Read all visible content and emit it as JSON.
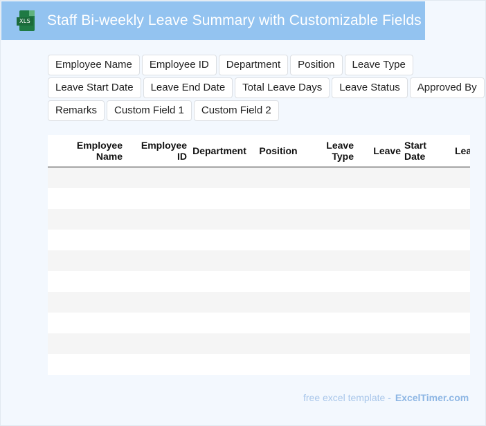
{
  "header": {
    "icon_label": "XLS",
    "title": "Staff Bi-weekly Leave Summary with Customizable Fields"
  },
  "fields": [
    [
      "Employee Name",
      "Employee ID",
      "Department",
      "Position",
      "Leave Type"
    ],
    [
      "Leave Start Date",
      "Leave End Date",
      "Total Leave Days",
      "Leave Status",
      "Approved By"
    ],
    [
      "Remarks",
      "Custom Field 1",
      "Custom Field 2"
    ]
  ],
  "table": {
    "headers": [
      {
        "line1": "Employee",
        "line2": "Name"
      },
      {
        "line1": "Employee",
        "line2": "ID"
      },
      {
        "line1": "Department",
        "line2": ""
      },
      {
        "line1": "Position",
        "line2": ""
      },
      {
        "line1": "Leave",
        "line2": "Type"
      },
      {
        "line1": "Leave",
        "line2": ""
      },
      {
        "line1": "Start",
        "line2": "Date"
      },
      {
        "line1": "Leav",
        "line2": ""
      }
    ],
    "row_count": 10
  },
  "footer": {
    "text": "free excel template -",
    "brand": "ExcelTimer.com"
  }
}
